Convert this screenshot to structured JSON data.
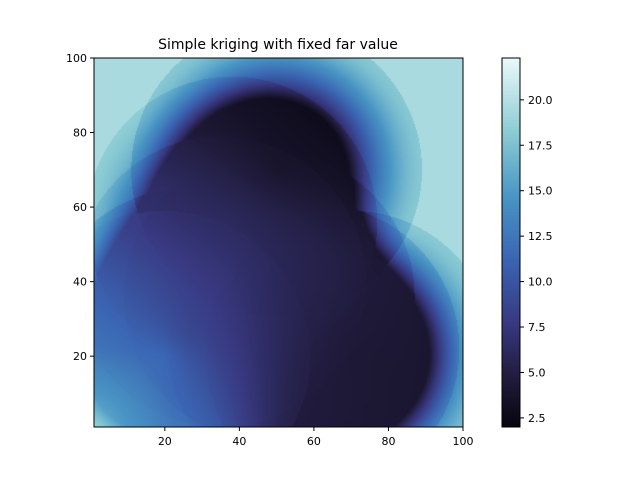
{
  "chart_data": {
    "type": "heatmap",
    "title": "Simple kriging with fixed far value",
    "xlabel": "",
    "ylabel": "",
    "xlim": [
      1,
      100
    ],
    "ylim": [
      1,
      100
    ],
    "x_ticks": [
      20,
      40,
      60,
      80,
      100
    ],
    "y_ticks": [
      20,
      40,
      60,
      80,
      100
    ],
    "colorbar": {
      "colormap": "icefire-blue",
      "range": [
        2.0,
        22.3
      ],
      "ticks": [
        2.5,
        5.0,
        7.5,
        10.0,
        12.5,
        15.0,
        17.5,
        20.0
      ],
      "tick_labels": [
        "2.5",
        "5.0",
        "7.5",
        "10.0",
        "12.5",
        "15.0",
        "17.5",
        "20.0"
      ]
    },
    "far_value": 19.5,
    "range_radius": 39,
    "observations": [
      {
        "x": 50,
        "y": 70,
        "value": 2.3
      },
      {
        "x": 70,
        "y": 20,
        "value": 3.5
      },
      {
        "x": 26,
        "y": 26,
        "value": 5.0
      },
      {
        "x": 20,
        "y": 20,
        "value": 17.0
      },
      {
        "x": 38,
        "y": 56,
        "value": 7.0
      },
      {
        "x": 48,
        "y": 36,
        "value": 5.0
      },
      {
        "x": 60,
        "y": 22,
        "value": 5.5
      },
      {
        "x": 35,
        "y": 40,
        "value": 8.5
      }
    ],
    "grid": false
  }
}
